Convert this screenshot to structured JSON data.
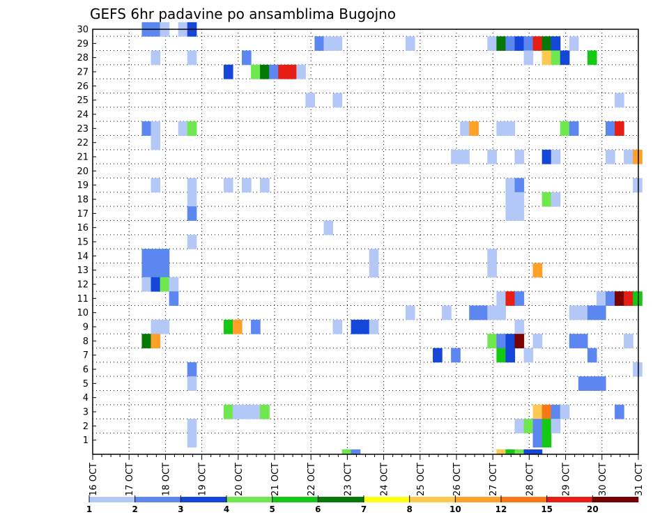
{
  "chart_data": {
    "type": "heatmap",
    "title": "GEFS 6hr padavine po ansamblima Bugojno",
    "xlabel": "",
    "ylabel": "",
    "x_ticks": [
      "16 OCT",
      "17 OCT",
      "18 OCT",
      "19 OCT",
      "20 OCT",
      "21 OCT",
      "22 OCT",
      "23 OCT",
      "24 OCT",
      "25 OCT",
      "26 OCT",
      "27 OCT",
      "28 OCT",
      "29 OCT",
      "30 OCT",
      "31 OCT"
    ],
    "y_ticks": [
      1,
      2,
      3,
      4,
      5,
      6,
      7,
      8,
      9,
      10,
      11,
      12,
      13,
      14,
      15,
      16,
      17,
      18,
      19,
      20,
      21,
      22,
      23,
      24,
      25,
      26,
      27,
      28,
      29,
      30
    ],
    "x_range_days": [
      0,
      15
    ],
    "y_range": [
      0,
      30
    ],
    "grid": true,
    "legend": {
      "position": "bottom",
      "labels": [
        "1",
        "2",
        "3",
        "4",
        "5",
        "6",
        "7",
        "8",
        "10",
        "12",
        "15",
        "20"
      ],
      "colors": [
        "#b4c8f8",
        "#5c87f0",
        "#1446d8",
        "#6ee84e",
        "#14c814",
        "#067806",
        "#ffff14",
        "#ffc850",
        "#ffa028",
        "#fa7814",
        "#e61e14",
        "#780000"
      ]
    },
    "cells": [
      {
        "x": 1.35,
        "y": 30,
        "v": 2
      },
      {
        "x": 1.6,
        "y": 30,
        "v": 2
      },
      {
        "x": 1.85,
        "y": 30,
        "v": 1
      },
      {
        "x": 2.35,
        "y": 30,
        "v": 1
      },
      {
        "x": 2.6,
        "y": 30,
        "v": 3
      },
      {
        "x": 6.1,
        "y": 29,
        "v": 2
      },
      {
        "x": 6.35,
        "y": 29,
        "v": 1
      },
      {
        "x": 6.6,
        "y": 29,
        "v": 1
      },
      {
        "x": 8.6,
        "y": 29,
        "v": 1
      },
      {
        "x": 10.85,
        "y": 29,
        "v": 1
      },
      {
        "x": 11.1,
        "y": 29,
        "v": 6
      },
      {
        "x": 11.35,
        "y": 29,
        "v": 2
      },
      {
        "x": 11.6,
        "y": 29,
        "v": 3
      },
      {
        "x": 11.85,
        "y": 29,
        "v": 2
      },
      {
        "x": 12.1,
        "y": 29,
        "v": 15
      },
      {
        "x": 12.35,
        "y": 29,
        "v": 6
      },
      {
        "x": 12.6,
        "y": 29,
        "v": 3
      },
      {
        "x": 13.1,
        "y": 29,
        "v": 1
      },
      {
        "x": 1.6,
        "y": 28,
        "v": 1
      },
      {
        "x": 2.6,
        "y": 28,
        "v": 1
      },
      {
        "x": 4.1,
        "y": 28,
        "v": 2
      },
      {
        "x": 11.85,
        "y": 28,
        "v": 1
      },
      {
        "x": 12.35,
        "y": 28,
        "v": 8
      },
      {
        "x": 12.6,
        "y": 28,
        "v": 4
      },
      {
        "x": 12.85,
        "y": 28,
        "v": 3
      },
      {
        "x": 13.6,
        "y": 28,
        "v": 5
      },
      {
        "x": 3.6,
        "y": 27,
        "v": 3
      },
      {
        "x": 4.35,
        "y": 27,
        "v": 4
      },
      {
        "x": 4.6,
        "y": 27,
        "v": 6
      },
      {
        "x": 4.85,
        "y": 27,
        "v": 2
      },
      {
        "x": 5.1,
        "y": 27,
        "v": 15
      },
      {
        "x": 5.35,
        "y": 27,
        "v": 15
      },
      {
        "x": 5.6,
        "y": 27,
        "v": 1
      },
      {
        "x": 5.85,
        "y": 25,
        "v": 1
      },
      {
        "x": 6.6,
        "y": 25,
        "v": 1
      },
      {
        "x": 14.35,
        "y": 25,
        "v": 1
      },
      {
        "x": 1.35,
        "y": 23,
        "v": 2
      },
      {
        "x": 1.6,
        "y": 23,
        "v": 1
      },
      {
        "x": 2.35,
        "y": 23,
        "v": 1
      },
      {
        "x": 2.6,
        "y": 23,
        "v": 4
      },
      {
        "x": 10.1,
        "y": 23,
        "v": 1
      },
      {
        "x": 10.35,
        "y": 23,
        "v": 10
      },
      {
        "x": 11.1,
        "y": 23,
        "v": 1
      },
      {
        "x": 11.35,
        "y": 23,
        "v": 1
      },
      {
        "x": 12.85,
        "y": 23,
        "v": 4
      },
      {
        "x": 13.1,
        "y": 23,
        "v": 2
      },
      {
        "x": 14.1,
        "y": 23,
        "v": 2
      },
      {
        "x": 14.35,
        "y": 23,
        "v": 15
      },
      {
        "x": 1.6,
        "y": 22,
        "v": 1
      },
      {
        "x": 9.85,
        "y": 21,
        "v": 1
      },
      {
        "x": 10.1,
        "y": 21,
        "v": 1
      },
      {
        "x": 10.85,
        "y": 21,
        "v": 1
      },
      {
        "x": 11.6,
        "y": 21,
        "v": 1
      },
      {
        "x": 12.35,
        "y": 21,
        "v": 3
      },
      {
        "x": 12.6,
        "y": 21,
        "v": 1
      },
      {
        "x": 14.1,
        "y": 21,
        "v": 1
      },
      {
        "x": 14.6,
        "y": 21,
        "v": 1
      },
      {
        "x": 14.85,
        "y": 21,
        "v": 10
      },
      {
        "x": 1.6,
        "y": 19,
        "v": 1
      },
      {
        "x": 2.6,
        "y": 19,
        "v": 1
      },
      {
        "x": 3.6,
        "y": 19,
        "v": 1
      },
      {
        "x": 4.1,
        "y": 19,
        "v": 1
      },
      {
        "x": 4.6,
        "y": 19,
        "v": 1
      },
      {
        "x": 11.35,
        "y": 19,
        "v": 1
      },
      {
        "x": 11.6,
        "y": 19,
        "v": 2
      },
      {
        "x": 14.85,
        "y": 19,
        "v": 1
      },
      {
        "x": 2.6,
        "y": 18,
        "v": 1
      },
      {
        "x": 11.35,
        "y": 18,
        "v": 1
      },
      {
        "x": 11.6,
        "y": 18,
        "v": 1
      },
      {
        "x": 12.35,
        "y": 18,
        "v": 4
      },
      {
        "x": 12.6,
        "y": 18,
        "v": 1
      },
      {
        "x": 2.6,
        "y": 17,
        "v": 2
      },
      {
        "x": 11.35,
        "y": 17,
        "v": 1
      },
      {
        "x": 11.6,
        "y": 17,
        "v": 1
      },
      {
        "x": 6.35,
        "y": 16,
        "v": 1
      },
      {
        "x": 2.6,
        "y": 15,
        "v": 1
      },
      {
        "x": 1.35,
        "y": 14,
        "v": 2
      },
      {
        "x": 1.6,
        "y": 14,
        "v": 2
      },
      {
        "x": 1.85,
        "y": 14,
        "v": 2
      },
      {
        "x": 7.6,
        "y": 14,
        "v": 1
      },
      {
        "x": 10.85,
        "y": 14,
        "v": 1
      },
      {
        "x": 1.35,
        "y": 13,
        "v": 2
      },
      {
        "x": 1.6,
        "y": 13,
        "v": 2
      },
      {
        "x": 1.85,
        "y": 13,
        "v": 2
      },
      {
        "x": 7.6,
        "y": 13,
        "v": 1
      },
      {
        "x": 10.85,
        "y": 13,
        "v": 1
      },
      {
        "x": 12.1,
        "y": 13,
        "v": 10
      },
      {
        "x": 1.35,
        "y": 12,
        "v": 1
      },
      {
        "x": 1.6,
        "y": 12,
        "v": 3
      },
      {
        "x": 1.85,
        "y": 12,
        "v": 4
      },
      {
        "x": 2.1,
        "y": 12,
        "v": 1
      },
      {
        "x": 2.1,
        "y": 11,
        "v": 2
      },
      {
        "x": 11.1,
        "y": 11,
        "v": 1
      },
      {
        "x": 11.35,
        "y": 11,
        "v": 15
      },
      {
        "x": 11.6,
        "y": 11,
        "v": 2
      },
      {
        "x": 13.85,
        "y": 11,
        "v": 1
      },
      {
        "x": 14.1,
        "y": 11,
        "v": 2
      },
      {
        "x": 14.35,
        "y": 11,
        "v": 20
      },
      {
        "x": 14.6,
        "y": 11,
        "v": 15
      },
      {
        "x": 14.85,
        "y": 11,
        "v": 5
      },
      {
        "x": 8.6,
        "y": 10,
        "v": 1
      },
      {
        "x": 9.6,
        "y": 10,
        "v": 1
      },
      {
        "x": 10.35,
        "y": 10,
        "v": 2
      },
      {
        "x": 10.6,
        "y": 10,
        "v": 2
      },
      {
        "x": 10.85,
        "y": 10,
        "v": 1
      },
      {
        "x": 11.1,
        "y": 10,
        "v": 1
      },
      {
        "x": 13.1,
        "y": 10,
        "v": 1
      },
      {
        "x": 13.35,
        "y": 10,
        "v": 1
      },
      {
        "x": 13.6,
        "y": 10,
        "v": 2
      },
      {
        "x": 13.85,
        "y": 10,
        "v": 2
      },
      {
        "x": 1.6,
        "y": 9,
        "v": 1
      },
      {
        "x": 1.85,
        "y": 9,
        "v": 1
      },
      {
        "x": 3.6,
        "y": 9,
        "v": 5
      },
      {
        "x": 3.85,
        "y": 9,
        "v": 10
      },
      {
        "x": 4.35,
        "y": 9,
        "v": 2
      },
      {
        "x": 6.6,
        "y": 9,
        "v": 1
      },
      {
        "x": 7.1,
        "y": 9,
        "v": 3
      },
      {
        "x": 7.35,
        "y": 9,
        "v": 3
      },
      {
        "x": 7.6,
        "y": 9,
        "v": 1
      },
      {
        "x": 11.6,
        "y": 9,
        "v": 1
      },
      {
        "x": 1.35,
        "y": 8,
        "v": 6
      },
      {
        "x": 1.6,
        "y": 8,
        "v": 10
      },
      {
        "x": 10.85,
        "y": 8,
        "v": 4
      },
      {
        "x": 11.1,
        "y": 8,
        "v": 2
      },
      {
        "x": 11.35,
        "y": 8,
        "v": 3
      },
      {
        "x": 11.6,
        "y": 8,
        "v": 20
      },
      {
        "x": 12.1,
        "y": 8,
        "v": 1
      },
      {
        "x": 13.1,
        "y": 8,
        "v": 2
      },
      {
        "x": 13.35,
        "y": 8,
        "v": 2
      },
      {
        "x": 14.6,
        "y": 8,
        "v": 1
      },
      {
        "x": 9.35,
        "y": 7,
        "v": 3
      },
      {
        "x": 9.85,
        "y": 7,
        "v": 2
      },
      {
        "x": 11.1,
        "y": 7,
        "v": 5
      },
      {
        "x": 11.35,
        "y": 7,
        "v": 3
      },
      {
        "x": 11.85,
        "y": 7,
        "v": 1
      },
      {
        "x": 13.6,
        "y": 7,
        "v": 2
      },
      {
        "x": 2.6,
        "y": 6,
        "v": 2
      },
      {
        "x": 14.85,
        "y": 6,
        "v": 1
      },
      {
        "x": 2.6,
        "y": 5,
        "v": 1
      },
      {
        "x": 13.35,
        "y": 5,
        "v": 2
      },
      {
        "x": 13.6,
        "y": 5,
        "v": 2
      },
      {
        "x": 13.85,
        "y": 5,
        "v": 2
      },
      {
        "x": 3.6,
        "y": 3,
        "v": 4
      },
      {
        "x": 3.85,
        "y": 3,
        "v": 1
      },
      {
        "x": 4.1,
        "y": 3,
        "v": 1
      },
      {
        "x": 4.35,
        "y": 3,
        "v": 1
      },
      {
        "x": 4.6,
        "y": 3,
        "v": 4
      },
      {
        "x": 12.1,
        "y": 3,
        "v": 8
      },
      {
        "x": 12.35,
        "y": 3,
        "v": 12
      },
      {
        "x": 12.6,
        "y": 3,
        "v": 2
      },
      {
        "x": 12.85,
        "y": 3,
        "v": 1
      },
      {
        "x": 14.35,
        "y": 3,
        "v": 2
      },
      {
        "x": 2.6,
        "y": 2,
        "v": 1
      },
      {
        "x": 11.6,
        "y": 2,
        "v": 1
      },
      {
        "x": 11.85,
        "y": 2,
        "v": 4
      },
      {
        "x": 12.1,
        "y": 2,
        "v": 2
      },
      {
        "x": 12.35,
        "y": 2,
        "v": 5
      },
      {
        "x": 12.6,
        "y": 2,
        "v": 1
      },
      {
        "x": 2.6,
        "y": 1,
        "v": 1
      },
      {
        "x": 12.1,
        "y": 1,
        "v": 2
      },
      {
        "x": 12.35,
        "y": 1,
        "v": 5
      },
      {
        "x": 6.85,
        "y": 0,
        "v": 4
      },
      {
        "x": 7.1,
        "y": 0,
        "v": 2
      },
      {
        "x": 11.1,
        "y": 0,
        "v": 8
      },
      {
        "x": 11.35,
        "y": 0,
        "v": 5
      },
      {
        "x": 11.6,
        "y": 0,
        "v": 4
      },
      {
        "x": 11.85,
        "y": 0,
        "v": 3
      },
      {
        "x": 12.1,
        "y": 0,
        "v": 3
      }
    ]
  }
}
